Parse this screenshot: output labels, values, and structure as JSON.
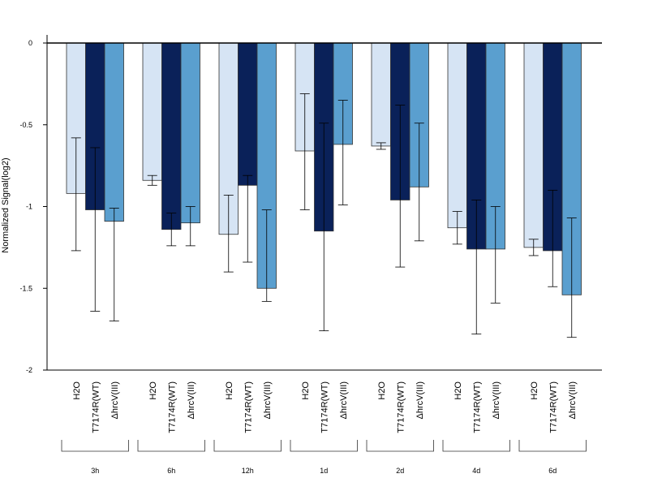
{
  "chart_data": {
    "type": "bar",
    "ylabel": "Normalized Signal(log2)",
    "ylim": [
      -2,
      0
    ],
    "yticks": [
      0,
      -0.5,
      -1,
      -1.5,
      -2
    ],
    "ytick_labels": [
      "0",
      "-0.5",
      "-1",
      "-1.5",
      "-2"
    ],
    "groups": [
      "3h",
      "6h",
      "12h",
      "1d",
      "2d",
      "4d",
      "6d"
    ],
    "bar_labels": [
      "H2O",
      "T7174R(WT)",
      "ΔhrcV(III)"
    ],
    "series": [
      {
        "name": "H2O",
        "color": "#d6e4f4",
        "values": [
          -0.92,
          -0.84,
          -1.17,
          -0.66,
          -0.63,
          -1.13,
          -1.25
        ],
        "err_low": [
          -1.27,
          -0.87,
          -1.4,
          -1.02,
          -0.65,
          -1.23,
          -1.3
        ],
        "err_high": [
          -0.58,
          -0.81,
          -0.93,
          -0.31,
          -0.61,
          -1.03,
          -1.2
        ]
      },
      {
        "name": "T7174R(WT)",
        "color": "#0a2159",
        "values": [
          -1.02,
          -1.14,
          -0.87,
          -1.15,
          -0.96,
          -1.26,
          -1.27
        ],
        "err_low": [
          -1.64,
          -1.24,
          -1.34,
          -1.76,
          -1.37,
          -1.78,
          -1.49
        ],
        "err_high": [
          -0.64,
          -1.04,
          -0.81,
          -0.49,
          -0.38,
          -0.96,
          -0.9
        ]
      },
      {
        "name": "ΔhrcV(III)",
        "color": "#5a9fcf",
        "values": [
          -1.09,
          -1.1,
          -1.5,
          -0.62,
          -0.88,
          -1.26,
          -1.54
        ],
        "err_low": [
          -1.7,
          -1.24,
          -1.58,
          -0.99,
          -1.21,
          -1.59,
          -1.8
        ],
        "err_high": [
          -1.01,
          -1.0,
          -1.02,
          -0.35,
          -0.49,
          -1.0,
          -1.07
        ]
      }
    ]
  }
}
